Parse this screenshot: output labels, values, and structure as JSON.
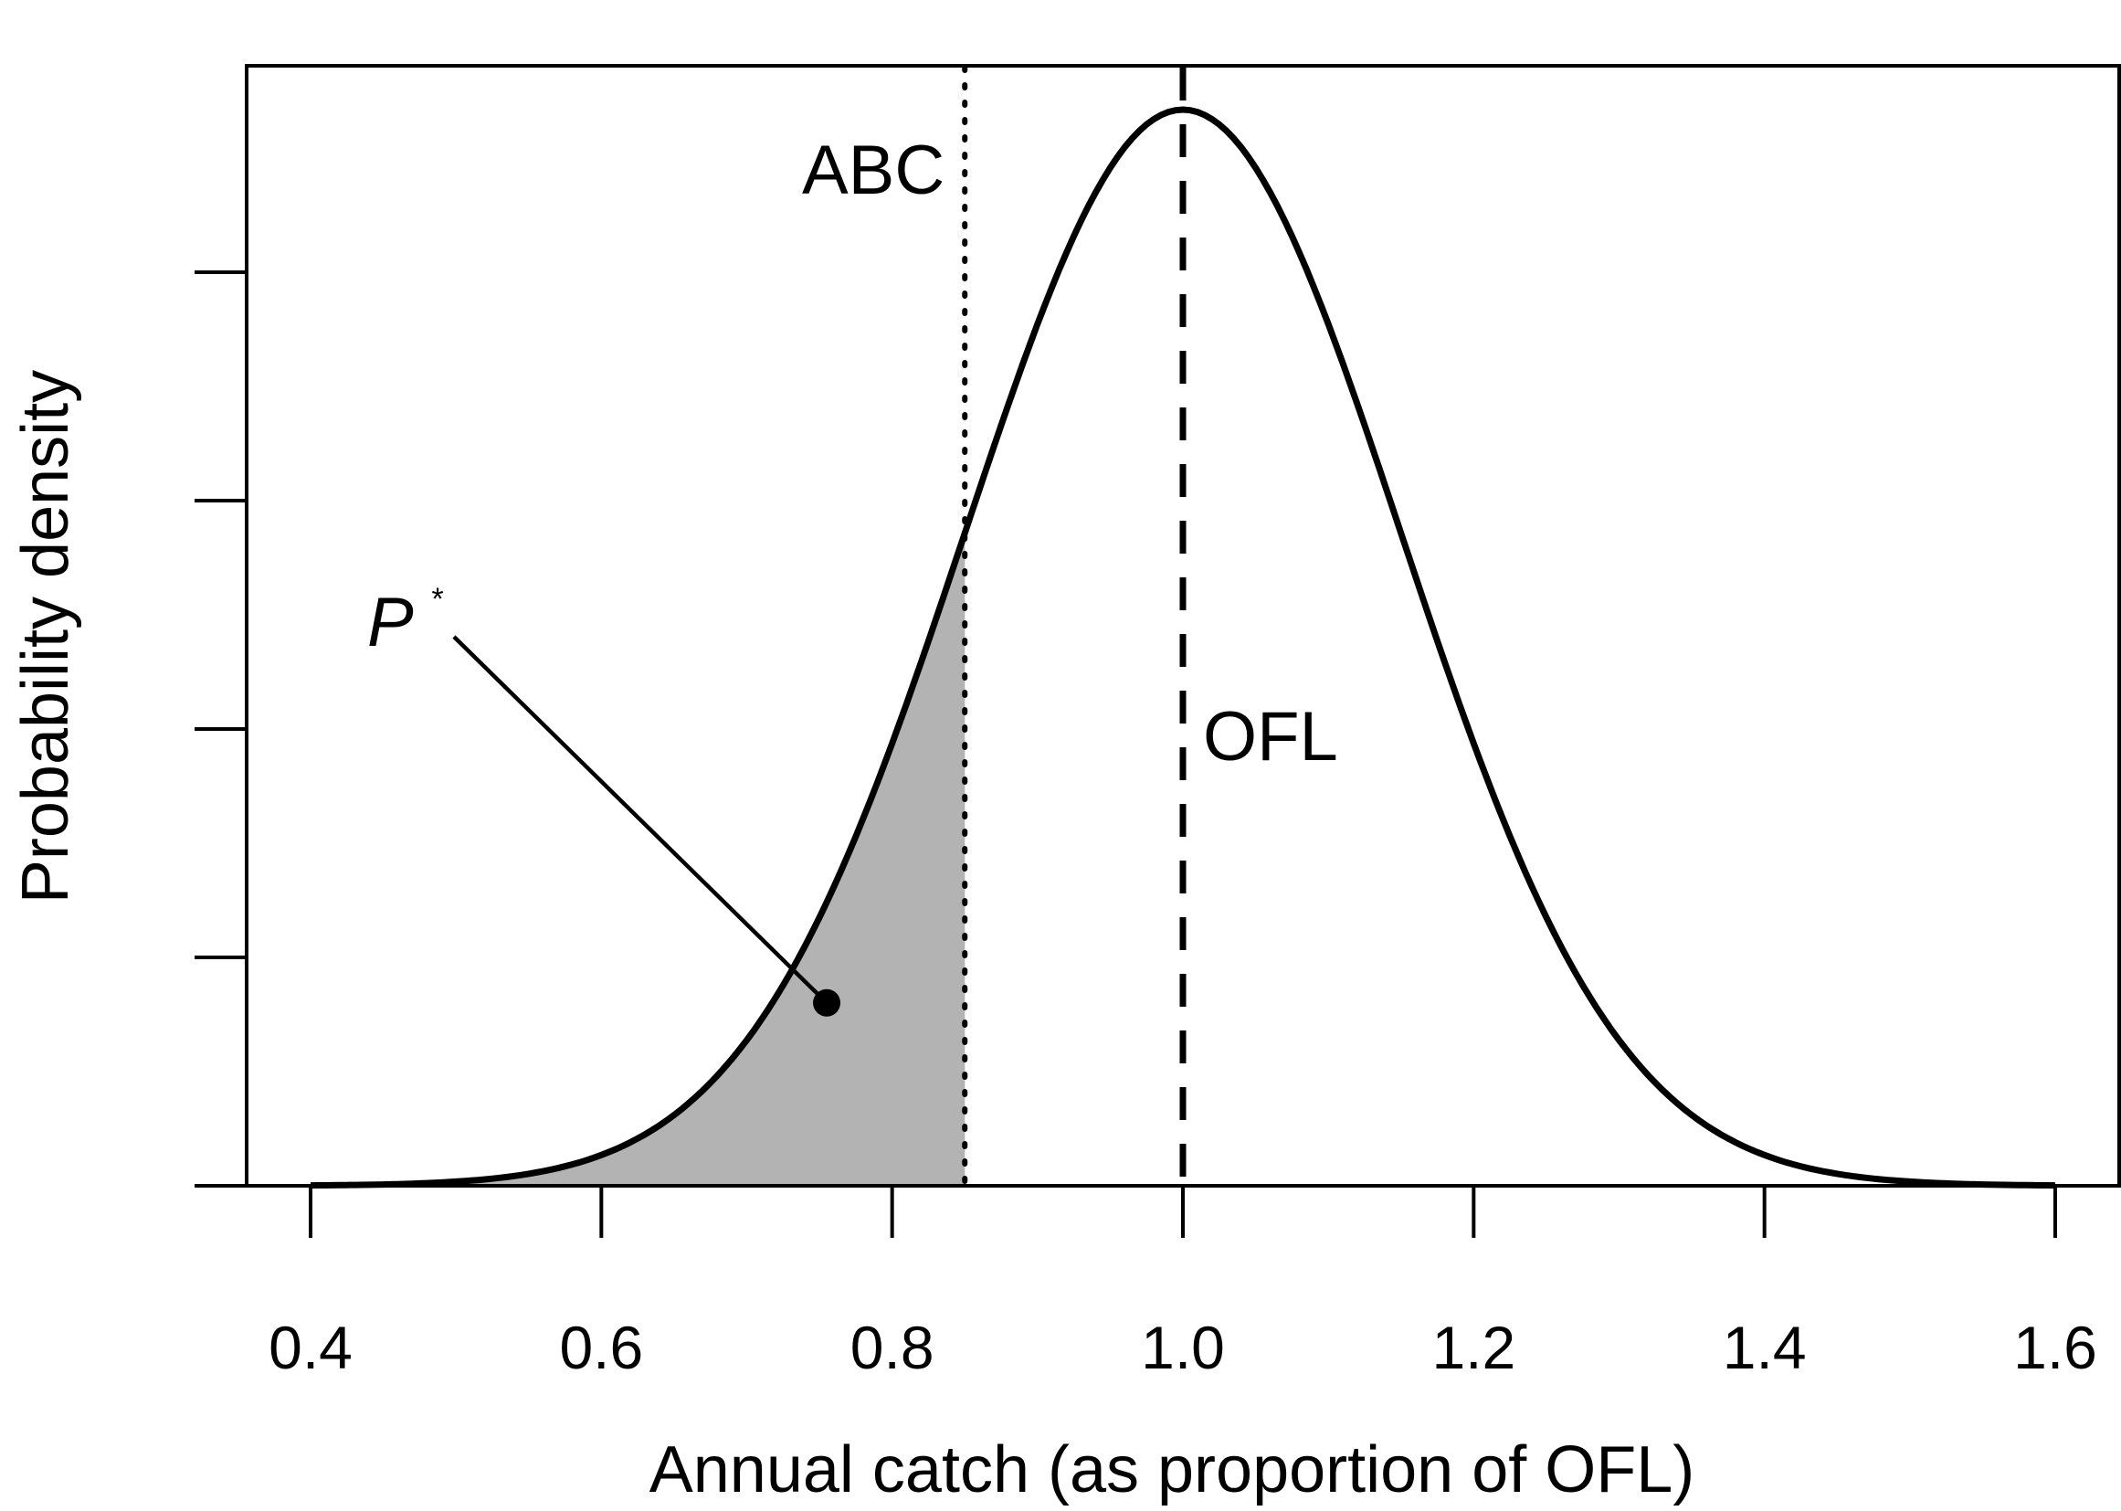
{
  "chart_data": {
    "type": "area",
    "xlabel": "Annual catch (as proportion of OFL)",
    "ylabel": "Probability density",
    "xlim": [
      0.35,
      1.6
    ],
    "ylim": [
      0,
      1.03
    ],
    "x_ticks": [
      "0.4",
      "0.6",
      "0.8",
      "1.0",
      "1.2",
      "1.4",
      "1.6"
    ],
    "y_ticks_labeled": false,
    "grid": false,
    "curve": {
      "distribution": "normal",
      "mean": 1.0,
      "sd": 0.15,
      "x": [
        0.4,
        0.45,
        0.5,
        0.55,
        0.6,
        0.65,
        0.7,
        0.75,
        0.8,
        0.85,
        0.9,
        0.95,
        1.0,
        1.05,
        1.1,
        1.15,
        1.2,
        1.25,
        1.3,
        1.35,
        1.4,
        1.45,
        1.5,
        1.55,
        1.6
      ],
      "y": [
        0.0003,
        0.0011,
        0.0039,
        0.0111,
        0.0286,
        0.0657,
        0.1353,
        0.2494,
        0.4111,
        0.6065,
        0.8007,
        0.946,
        1.0,
        0.946,
        0.8007,
        0.6065,
        0.4111,
        0.2494,
        0.1353,
        0.0657,
        0.0286,
        0.0111,
        0.0039,
        0.0011,
        0.0003
      ]
    },
    "shaded_region": {
      "x_from": 0.4,
      "x_to": 0.85,
      "color": "#b3b3b3"
    },
    "vlines": [
      {
        "label": "ABC",
        "x": 0.85,
        "style": "dotted"
      },
      {
        "label": "OFL",
        "x": 1.0,
        "style": "dashed"
      }
    ],
    "annotations": {
      "pstar": {
        "letter": "P",
        "superscript": "*",
        "point": [
          0.755,
          0.17
        ]
      }
    },
    "colors": {
      "curve": "#000000",
      "shade": "#b3b3b3",
      "background": "#ffffff"
    }
  }
}
